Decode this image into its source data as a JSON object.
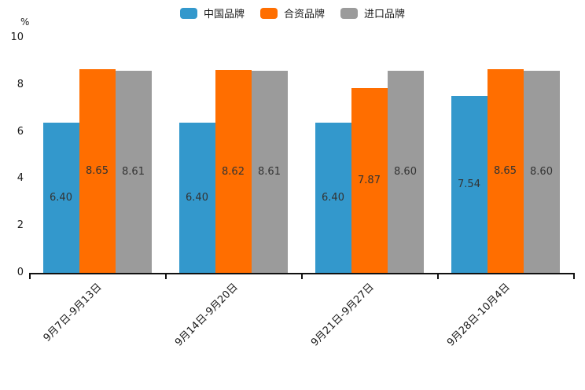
{
  "chart_data": {
    "type": "bar",
    "title": "",
    "unit_label": "%",
    "categories": [
      "9月7日-9月13日",
      "9月14日-9月20日",
      "9月21日-9月27日",
      "9月28日-10月4日"
    ],
    "series": [
      {
        "name": "中国品牌",
        "color": "#3398CC",
        "values": [
          6.4,
          6.4,
          6.4,
          7.54
        ]
      },
      {
        "name": "合资品牌",
        "color": "#FF6E00",
        "values": [
          8.65,
          8.62,
          7.87,
          8.65
        ]
      },
      {
        "name": "进口品牌",
        "color": "#9B9B9B",
        "values": [
          8.61,
          8.61,
          8.6,
          8.6
        ]
      }
    ],
    "value_label_decimals": 2,
    "value_label_color": "#333333",
    "text_color": "#1a1a1a",
    "axis_color": "#111111",
    "background": "#ffffff",
    "ylim": [
      0,
      10
    ],
    "yticks": [
      0,
      2,
      4,
      6,
      8,
      10
    ],
    "grid": false,
    "legend_position": "top-center",
    "x_label_rotation_deg": 45
  }
}
